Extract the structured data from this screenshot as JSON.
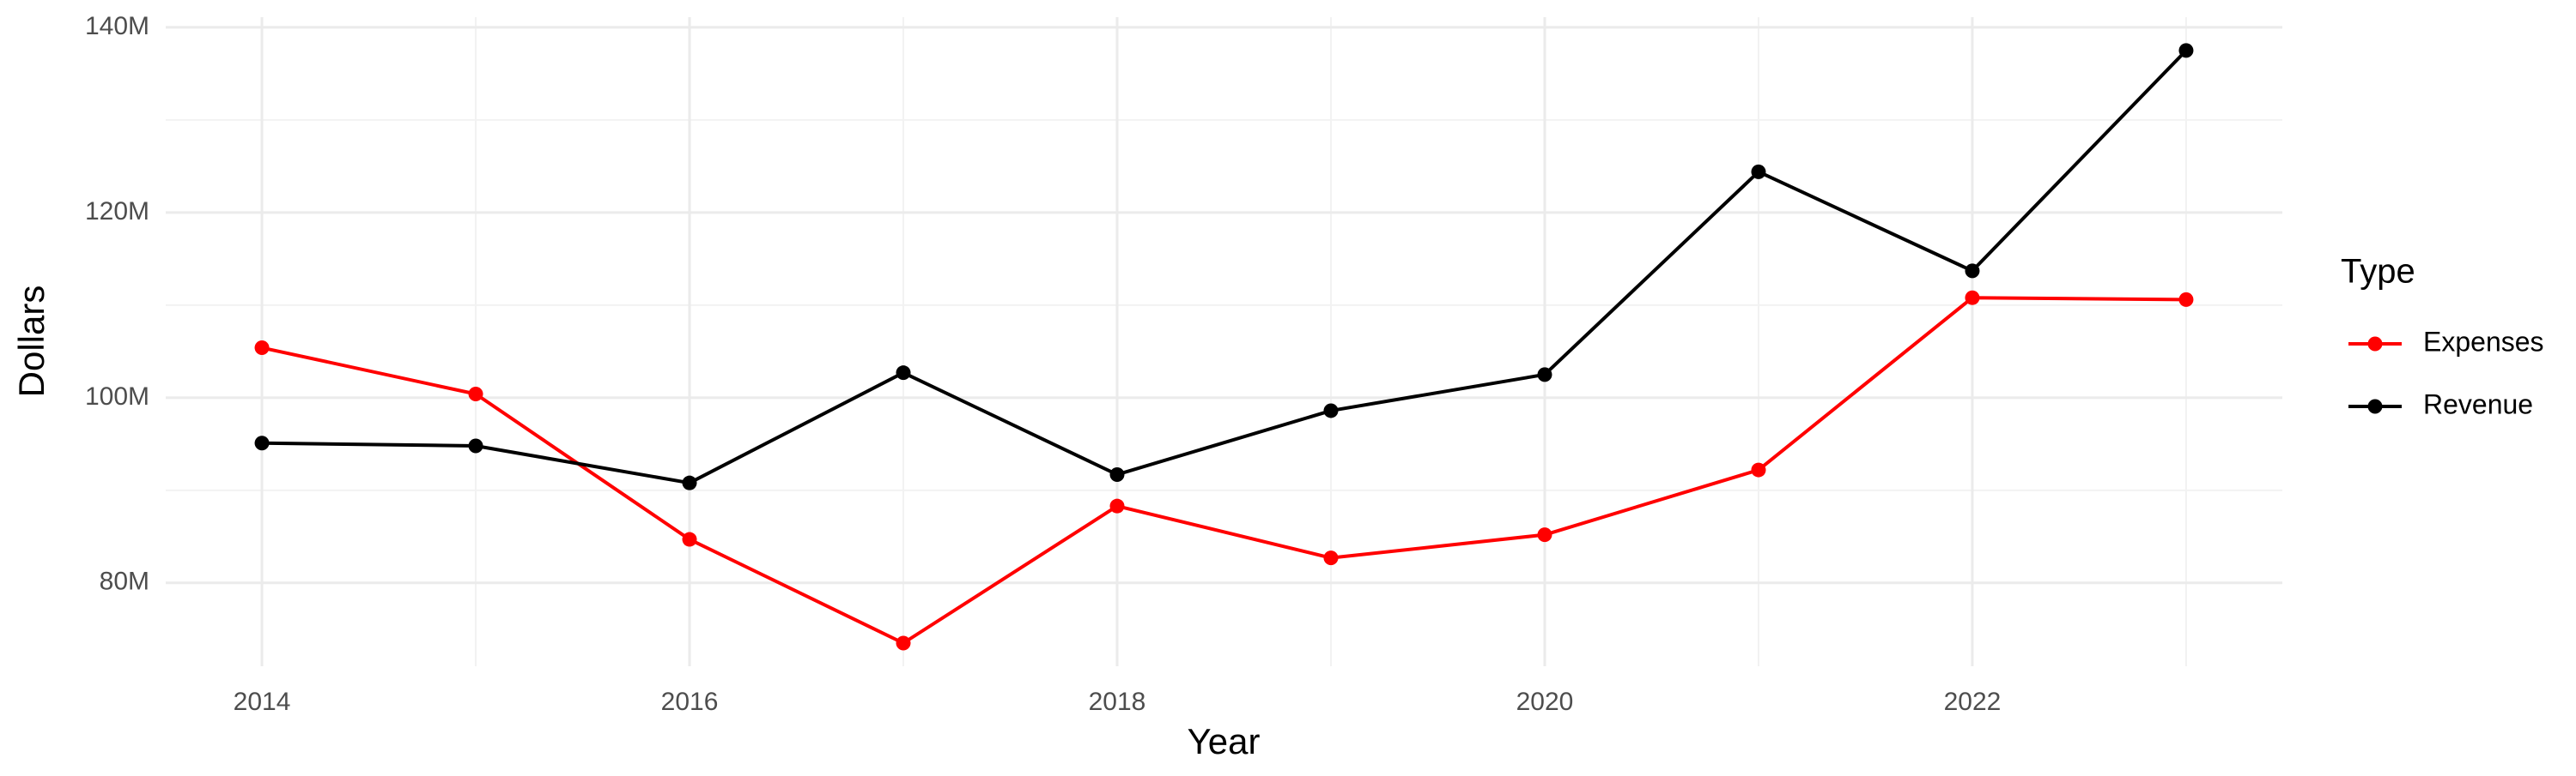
{
  "chart_data": {
    "type": "line",
    "x_label": "Year",
    "y_label": "Dollars",
    "x": [
      2014,
      2015,
      2016,
      2017,
      2018,
      2019,
      2020,
      2021,
      2022,
      2023
    ],
    "series": [
      {
        "name": "Expenses",
        "color": "#ff0000",
        "values": [
          105400000,
          100400000,
          84700000,
          73500000,
          88300000,
          82700000,
          85200000,
          92200000,
          110800000,
          110600000
        ]
      },
      {
        "name": "Revenue",
        "color": "#000000",
        "values": [
          95100000,
          94800000,
          90800000,
          102700000,
          91700000,
          98600000,
          102500000,
          124400000,
          113700000,
          137500000
        ]
      }
    ],
    "xlim": [
      2013.55,
      2023.45
    ],
    "xticks": [
      2014,
      2016,
      2018,
      2020,
      2022
    ],
    "ylim": [
      71000000,
      141100000
    ],
    "yticks": [
      {
        "value": 80000000,
        "label": "80M"
      },
      {
        "value": 100000000,
        "label": "100M"
      },
      {
        "value": 120000000,
        "label": "120M"
      },
      {
        "value": 140000000,
        "label": "140M"
      }
    ],
    "grid": true,
    "legend_title": "Type",
    "legend_position": "right"
  }
}
